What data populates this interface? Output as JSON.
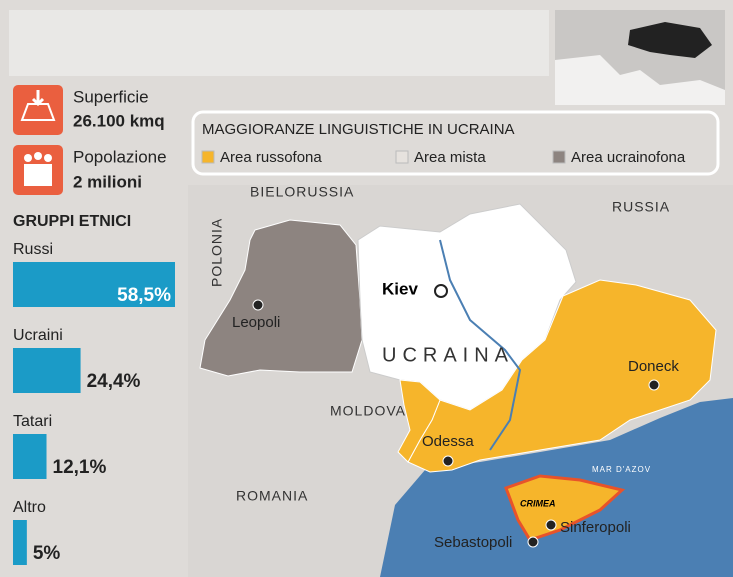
{
  "sidebar": {
    "area_label": "Superficie",
    "area_value": "26.100 kmq",
    "population_label": "Popolazione",
    "population_value": "2 milioni"
  },
  "chart_data": {
    "type": "bar",
    "orientation": "horizontal",
    "title": "GRUPPI ETNICI",
    "categories": [
      "Russi",
      "Ucraini",
      "Tatari",
      "Altro"
    ],
    "values": [
      58.5,
      24.4,
      12.1,
      5
    ],
    "value_labels": [
      "58,5%",
      "24,4%",
      "12,1%",
      "5%"
    ],
    "color": "#1b9bc7"
  },
  "legend": {
    "title": "MAGGIORANZE LINGUISTICHE IN UCRAINA",
    "items": [
      {
        "label": "Area russofona",
        "color": "#f6b52b"
      },
      {
        "label": "Area mista",
        "color": "#e6e2de"
      },
      {
        "label": "Area ucrainofona",
        "color": "#8d8480"
      }
    ]
  },
  "map": {
    "countries": [
      "BIELORUSSIA",
      "RUSSIA",
      "POLONIA",
      "MOLDOVA",
      "ROMANIA",
      "UCRAINA"
    ],
    "cities": [
      "Kiev",
      "Leopoli",
      "Doneck",
      "Odessa",
      "Sebastopoli",
      "Sinferopoli"
    ],
    "sea": "MAR D'AZOV",
    "region": "CRIMEA"
  }
}
